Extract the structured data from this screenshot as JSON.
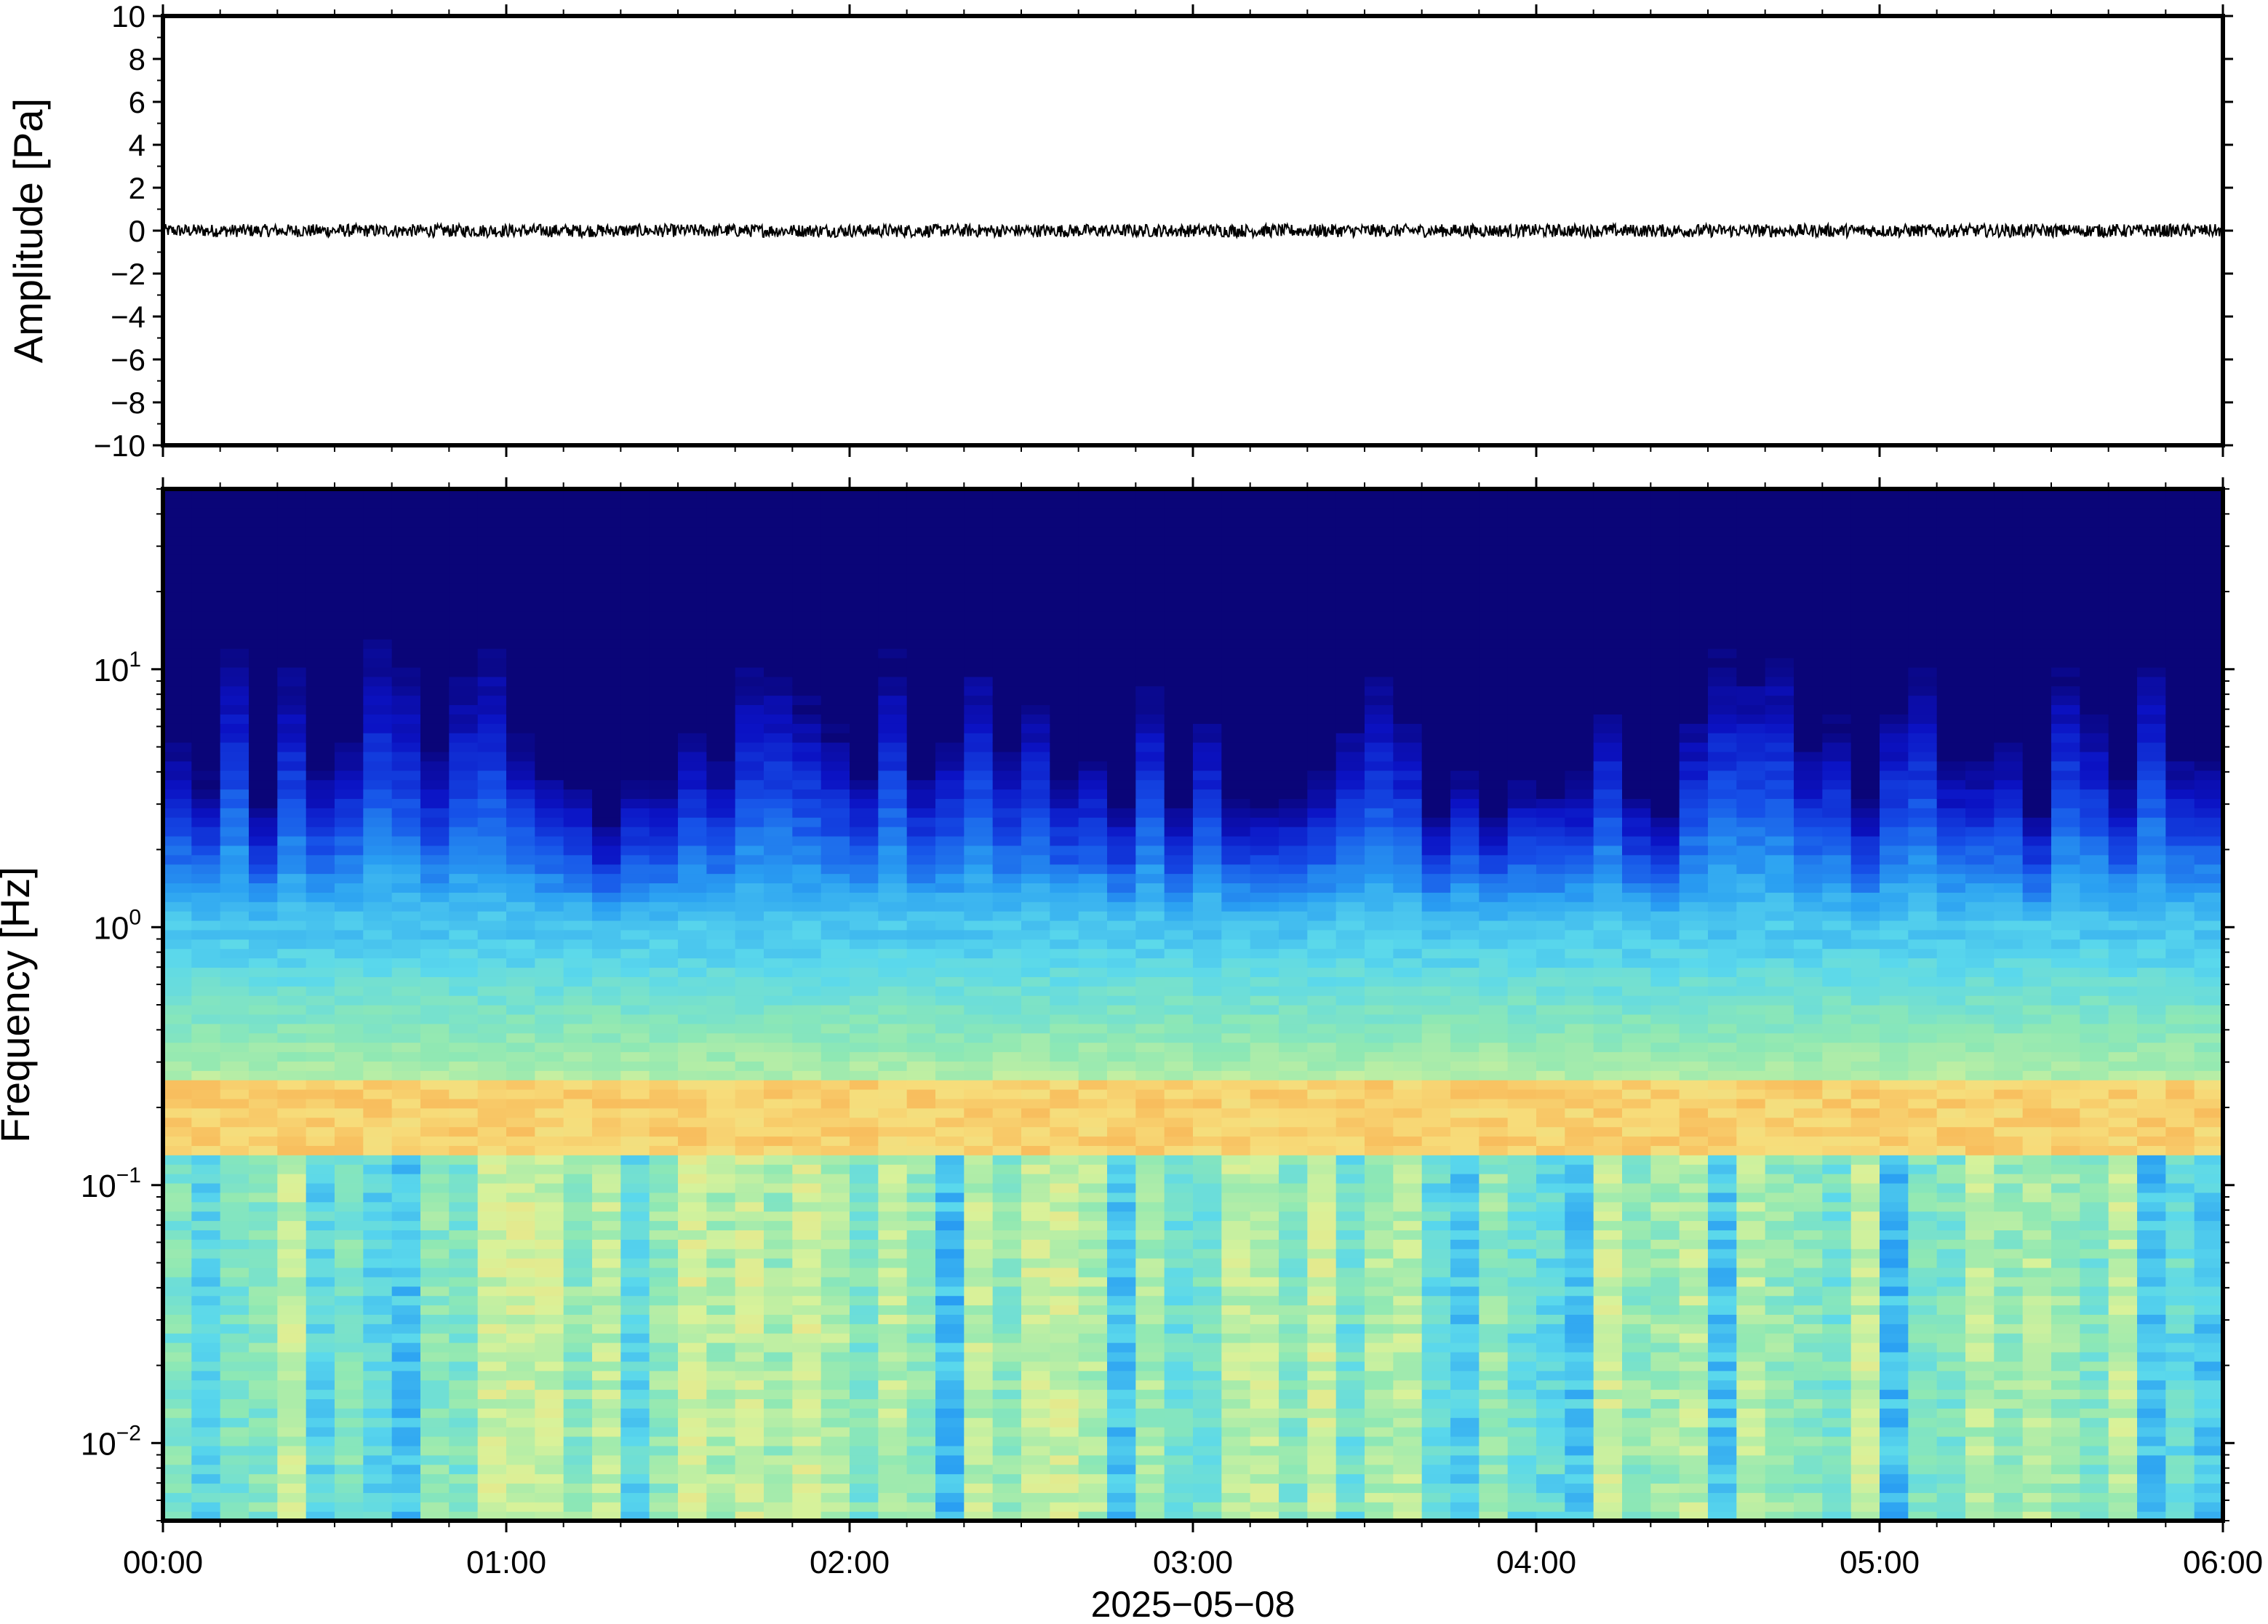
{
  "chart_data": [
    {
      "type": "line",
      "panel": "waveform",
      "ylabel": "Amplitude [Pa]",
      "ylim": [
        -10,
        10
      ],
      "yticks": [
        10,
        8,
        6,
        4,
        2,
        0,
        -2,
        -4,
        -6,
        -8,
        -10
      ],
      "ytick_labels": [
        "10",
        "8",
        "6",
        "4",
        "2",
        "0",
        "−2",
        "−4",
        "−6",
        "−8",
        "−10"
      ],
      "xlim": [
        "00:00",
        "06:00"
      ],
      "series": [
        {
          "x_range_hours": [
            0,
            6
          ],
          "approx_amplitude_range_pa": [
            -0.3,
            0.3
          ],
          "color": "#000000"
        }
      ]
    },
    {
      "type": "heatmap",
      "panel": "spectrogram",
      "ylabel": "Frequency [Hz]",
      "yscale": "log",
      "ylim": [
        0.005,
        50
      ],
      "yticks": [
        0.01,
        0.1,
        1,
        10
      ],
      "ytick_labels": [
        {
          "base": "10",
          "exp": "−2"
        },
        {
          "base": "10",
          "exp": "−1"
        },
        {
          "base": "10",
          "exp": "0"
        },
        {
          "base": "10",
          "exp": "1"
        }
      ],
      "xlim": [
        "00:00",
        "06:00"
      ],
      "xticks": [
        "00:00",
        "01:00",
        "02:00",
        "03:00",
        "04:00",
        "05:00",
        "06:00"
      ],
      "xlabel": "2025−05−08",
      "colormap": [
        "#0a0578",
        "#0b12c4",
        "#1650e8",
        "#2aa0f2",
        "#5ad8ec",
        "#8ee8b4",
        "#d8f29a",
        "#f7dc7a",
        "#f9a445",
        "#e8702a"
      ],
      "dominant_band_hz": 0.18,
      "notes_bands": [
        {
          "range_hz": [
            0.13,
            0.25
          ],
          "level": "high (orange)"
        },
        {
          "range_hz": [
            0.25,
            1
          ],
          "level": "medium (cyan-green)"
        },
        {
          "range_hz": [
            1,
            15
          ],
          "level": "low (blue), varies in time"
        },
        {
          "range_hz": [
            15,
            50
          ],
          "level": "background (dark navy)"
        }
      ]
    }
  ]
}
